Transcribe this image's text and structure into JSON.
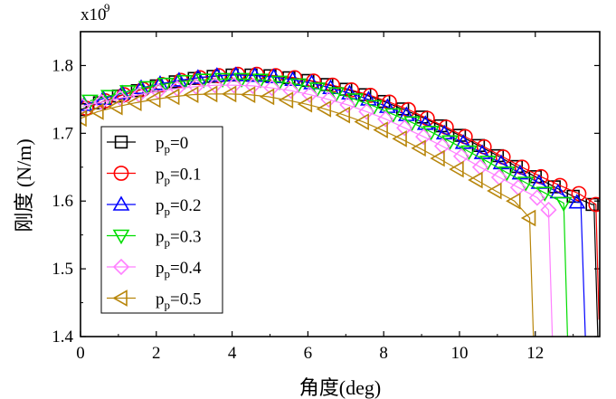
{
  "chart_data": {
    "type": "line",
    "xlabel": "角度(deg)",
    "ylabel": "刚度 (N/m)",
    "y_multiplier": "x10",
    "y_multiplier_exp": "9",
    "xlim": [
      0,
      13.7
    ],
    "ylim": [
      1.4,
      1.85
    ],
    "x_ticks": [
      "0",
      "2",
      "4",
      "6",
      "8",
      "10",
      "12"
    ],
    "x_tick_values": [
      0,
      2,
      4,
      6,
      8,
      10,
      12
    ],
    "y_ticks": [
      "1.4",
      "1.5",
      "1.6",
      "1.7",
      "1.8"
    ],
    "y_tick_values": [
      1.4,
      1.5,
      1.6,
      1.7,
      1.8
    ],
    "legend_position": "left-middle",
    "series": [
      {
        "name": "pp=0",
        "label_main": "p",
        "label_sub": "p",
        "label_val": "=0",
        "color": "#000000",
        "marker": "square",
        "x": [
          0,
          0.5,
          1.0,
          1.5,
          2.0,
          2.5,
          3.0,
          3.5,
          4.0,
          4.5,
          5.0,
          5.5,
          6.0,
          6.5,
          7.0,
          7.5,
          8.0,
          8.5,
          9.0,
          9.5,
          10.0,
          10.5,
          11.0,
          11.5,
          12.0,
          12.5,
          13.0,
          13.5
        ],
        "y": [
          1.735,
          1.745,
          1.755,
          1.763,
          1.77,
          1.776,
          1.781,
          1.784,
          1.786,
          1.786,
          1.785,
          1.782,
          1.778,
          1.772,
          1.765,
          1.757,
          1.747,
          1.736,
          1.724,
          1.711,
          1.697,
          1.682,
          1.667,
          1.651,
          1.636,
          1.621,
          1.607,
          1.595
        ],
        "drop": [
          [
            13.55,
            1.595
          ],
          [
            13.65,
            1.4
          ]
        ]
      },
      {
        "name": "pp=0.1",
        "label_main": "p",
        "label_sub": "p",
        "label_val": "=0.1",
        "color": "#ff0000",
        "marker": "circle",
        "x": [
          0.15,
          0.65,
          1.15,
          1.65,
          2.15,
          2.65,
          3.15,
          3.65,
          4.15,
          4.65,
          5.15,
          5.65,
          6.15,
          6.65,
          7.15,
          7.65,
          8.15,
          8.65,
          9.15,
          9.65,
          10.15,
          10.65,
          11.15,
          11.65,
          12.15,
          12.65,
          13.15,
          13.6
        ],
        "y": [
          1.737,
          1.748,
          1.757,
          1.765,
          1.772,
          1.778,
          1.782,
          1.785,
          1.787,
          1.787,
          1.785,
          1.782,
          1.777,
          1.771,
          1.764,
          1.756,
          1.746,
          1.735,
          1.722,
          1.709,
          1.695,
          1.68,
          1.665,
          1.65,
          1.636,
          1.623,
          1.611,
          1.595
        ],
        "drop": [
          [
            13.6,
            1.595
          ],
          [
            13.68,
            1.425
          ]
        ]
      },
      {
        "name": "pp=0.2",
        "label_main": "p",
        "label_sub": "p",
        "label_val": "=0.2",
        "color": "#0000ff",
        "marker": "triangle-up",
        "x": [
          0.1,
          0.6,
          1.1,
          1.6,
          2.1,
          2.6,
          3.1,
          3.6,
          4.1,
          4.6,
          5.1,
          5.6,
          6.1,
          6.6,
          7.1,
          7.6,
          8.1,
          8.6,
          9.1,
          9.6,
          10.1,
          10.6,
          11.1,
          11.6,
          12.1,
          12.6,
          13.1
        ],
        "y": [
          1.742,
          1.751,
          1.759,
          1.767,
          1.773,
          1.778,
          1.782,
          1.785,
          1.786,
          1.785,
          1.783,
          1.779,
          1.774,
          1.767,
          1.759,
          1.75,
          1.739,
          1.727,
          1.714,
          1.7,
          1.686,
          1.671,
          1.656,
          1.641,
          1.627,
          1.613,
          1.598
        ],
        "drop": [
          [
            13.2,
            1.598
          ],
          [
            13.32,
            1.4
          ]
        ]
      },
      {
        "name": "pp=0.3",
        "label_main": "p",
        "label_sub": "p",
        "label_val": "=0.3",
        "color": "#00dd00",
        "marker": "triangle-down",
        "x": [
          0.25,
          0.75,
          1.25,
          1.75,
          2.25,
          2.75,
          3.25,
          3.75,
          4.25,
          4.75,
          5.25,
          5.75,
          6.25,
          6.75,
          7.25,
          7.75,
          8.25,
          8.75,
          9.25,
          9.75,
          10.25,
          10.75,
          11.25,
          11.75,
          12.25,
          12.75
        ],
        "y": [
          1.748,
          1.755,
          1.762,
          1.768,
          1.773,
          1.777,
          1.779,
          1.78,
          1.78,
          1.779,
          1.776,
          1.772,
          1.766,
          1.759,
          1.75,
          1.74,
          1.728,
          1.716,
          1.702,
          1.688,
          1.673,
          1.658,
          1.642,
          1.627,
          1.612,
          1.597
        ],
        "drop": [
          [
            12.75,
            1.597
          ],
          [
            12.85,
            1.4
          ]
        ]
      },
      {
        "name": "pp=0.4",
        "label_main": "p",
        "label_sub": "p",
        "label_val": "=0.4",
        "color": "#ff80ff",
        "marker": "diamond",
        "x": [
          0.05,
          0.55,
          1.05,
          1.55,
          2.05,
          2.55,
          3.05,
          3.55,
          4.05,
          4.55,
          5.05,
          5.55,
          6.05,
          6.55,
          7.05,
          7.55,
          8.05,
          8.55,
          9.05,
          9.55,
          10.05,
          10.55,
          11.05,
          11.55,
          12.05,
          12.35
        ],
        "y": [
          1.74,
          1.746,
          1.752,
          1.757,
          1.762,
          1.766,
          1.769,
          1.771,
          1.771,
          1.77,
          1.767,
          1.763,
          1.757,
          1.75,
          1.742,
          1.732,
          1.721,
          1.708,
          1.695,
          1.681,
          1.666,
          1.65,
          1.635,
          1.62,
          1.605,
          1.587
        ],
        "drop": [
          [
            12.35,
            1.587
          ],
          [
            12.45,
            1.4
          ]
        ]
      },
      {
        "name": "pp=0.5",
        "label_main": "p",
        "label_sub": "p",
        "label_val": "=0.5",
        "color": "#b8860b",
        "marker": "triangle-left",
        "x": [
          0.0,
          0.45,
          0.95,
          1.45,
          1.95,
          2.45,
          2.95,
          3.45,
          3.95,
          4.45,
          4.95,
          5.45,
          5.95,
          6.45,
          6.95,
          7.45,
          7.95,
          8.45,
          8.95,
          9.45,
          9.95,
          10.45,
          10.95,
          11.45,
          11.85
        ],
        "y": [
          1.722,
          1.732,
          1.739,
          1.745,
          1.75,
          1.754,
          1.757,
          1.758,
          1.758,
          1.757,
          1.754,
          1.749,
          1.743,
          1.736,
          1.727,
          1.717,
          1.705,
          1.692,
          1.678,
          1.663,
          1.647,
          1.631,
          1.615,
          1.6,
          1.575
        ],
        "drop": [
          [
            11.85,
            1.575
          ],
          [
            11.95,
            1.4
          ]
        ]
      }
    ]
  }
}
